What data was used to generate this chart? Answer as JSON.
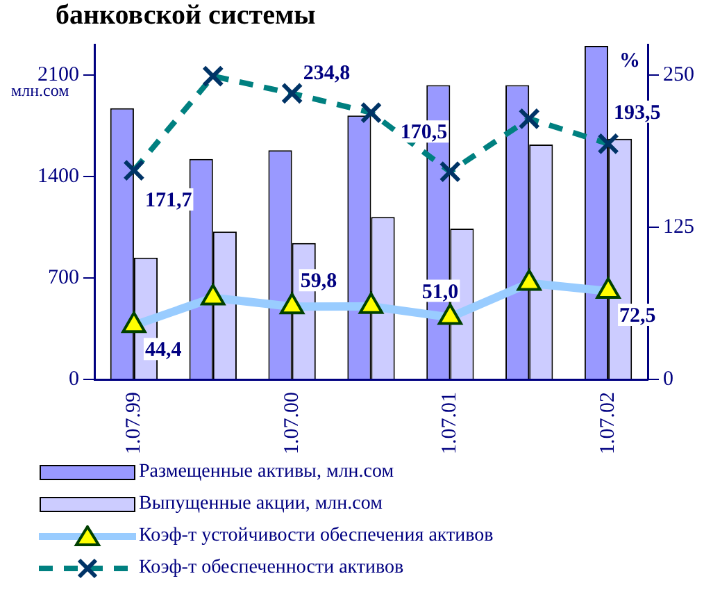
{
  "chart_data": {
    "type": "bar",
    "title": "банковской системы",
    "categories": [
      "1.07.99",
      null,
      "1.07.00",
      null,
      "1.07.01",
      null,
      "1.07.02"
    ],
    "series": [
      {
        "name": "Размещенные активы, млн.сом",
        "color": "#9999ff",
        "values": [
          1870,
          1520,
          1580,
          1820,
          2030,
          2030,
          2300
        ]
      },
      {
        "name": "Выпущенные акции, млн.сом",
        "color": "#ccccff",
        "values": [
          840,
          1020,
          940,
          1120,
          1040,
          1620,
          1660
        ]
      },
      {
        "name": "Коэф-т устойчивости обеспечения активов",
        "type": "line",
        "axis": "y2",
        "color": "#99ccff",
        "marker": "triangle",
        "line_style": "solid",
        "values": [
          44.4,
          67,
          59.8,
          60,
          51.0,
          79,
          72.5
        ],
        "value_labels": [
          "44,4",
          null,
          "59,8",
          null,
          "51,0",
          null,
          "72,5"
        ]
      },
      {
        "name": "Коэф-т обеспеченности активов",
        "type": "line",
        "axis": "y2",
        "color": "#008080",
        "marker": "cross",
        "line_style": "dashed",
        "values": [
          171.7,
          249,
          234.8,
          219,
          170.5,
          214,
          193.5
        ],
        "value_labels": [
          "171,7",
          null,
          "234,8",
          null,
          "170,5",
          null,
          "193,5"
        ]
      }
    ],
    "ylabel": "млн.сом",
    "y2label": "%",
    "ylim": [
      0,
      2310
    ],
    "yticks": [
      0,
      700,
      1400,
      2100
    ],
    "y2lim": [
      0,
      275
    ],
    "y2ticks": [
      0,
      125,
      250
    ],
    "grid": false,
    "legend": "bottom"
  }
}
